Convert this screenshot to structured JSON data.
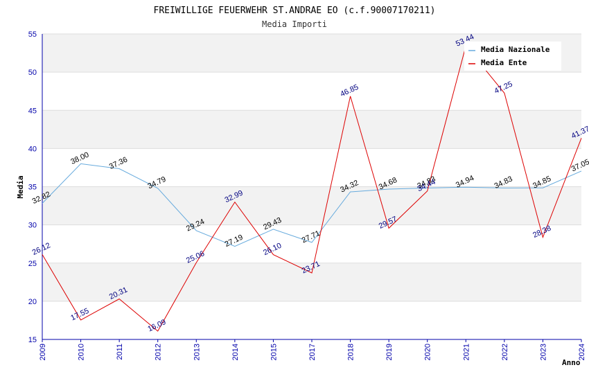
{
  "chart_data": {
    "type": "line",
    "title": "FREIWILLIGE FEUERWEHR ST.ANDRAE EO (c.f.90007170211)",
    "subtitle": "Media Importi",
    "xlabel": "Anno",
    "ylabel": "Media",
    "ylim": [
      15,
      55
    ],
    "yticks": [
      15,
      20,
      25,
      30,
      35,
      40,
      45,
      50,
      55
    ],
    "categories": [
      "2009",
      "2010",
      "2011",
      "2012",
      "2013",
      "2014",
      "2015",
      "2017",
      "2018",
      "2019",
      "2020",
      "2021",
      "2022",
      "2023",
      "2024"
    ],
    "series": [
      {
        "name": "Media Nazionale",
        "color": "#66aadd",
        "label_color": "#000000",
        "values": [
          32.82,
          38.0,
          37.36,
          34.79,
          29.24,
          27.19,
          29.43,
          27.71,
          34.32,
          34.68,
          34.83,
          34.94,
          34.83,
          34.85,
          37.05
        ],
        "labels": [
          "32.82",
          "38.00",
          "37.36",
          "34.79",
          "29.24",
          "27.19",
          "29.43",
          "27.71",
          "34.32",
          "34.68",
          "34.83",
          "34.94",
          "34.83",
          "34.85",
          "37.05"
        ]
      },
      {
        "name": "Media Ente",
        "color": "#dd0000",
        "label_color": "#000080",
        "values": [
          26.12,
          17.55,
          20.31,
          16.09,
          25.06,
          32.99,
          26.1,
          23.71,
          46.85,
          29.57,
          34.44,
          53.44,
          47.25,
          28.38,
          41.37
        ],
        "labels": [
          "26.12",
          "17.55",
          "20.31",
          "16.09",
          "25.06",
          "32.99",
          "26.10",
          "23.71",
          "46.85",
          "29.57",
          "34.44",
          "53.44",
          "47.25",
          "28.38",
          "41.37"
        ]
      }
    ],
    "grid": true,
    "legend_position": "top-right",
    "band_color": "#f2f2f2",
    "axis_color": "#0000aa"
  }
}
